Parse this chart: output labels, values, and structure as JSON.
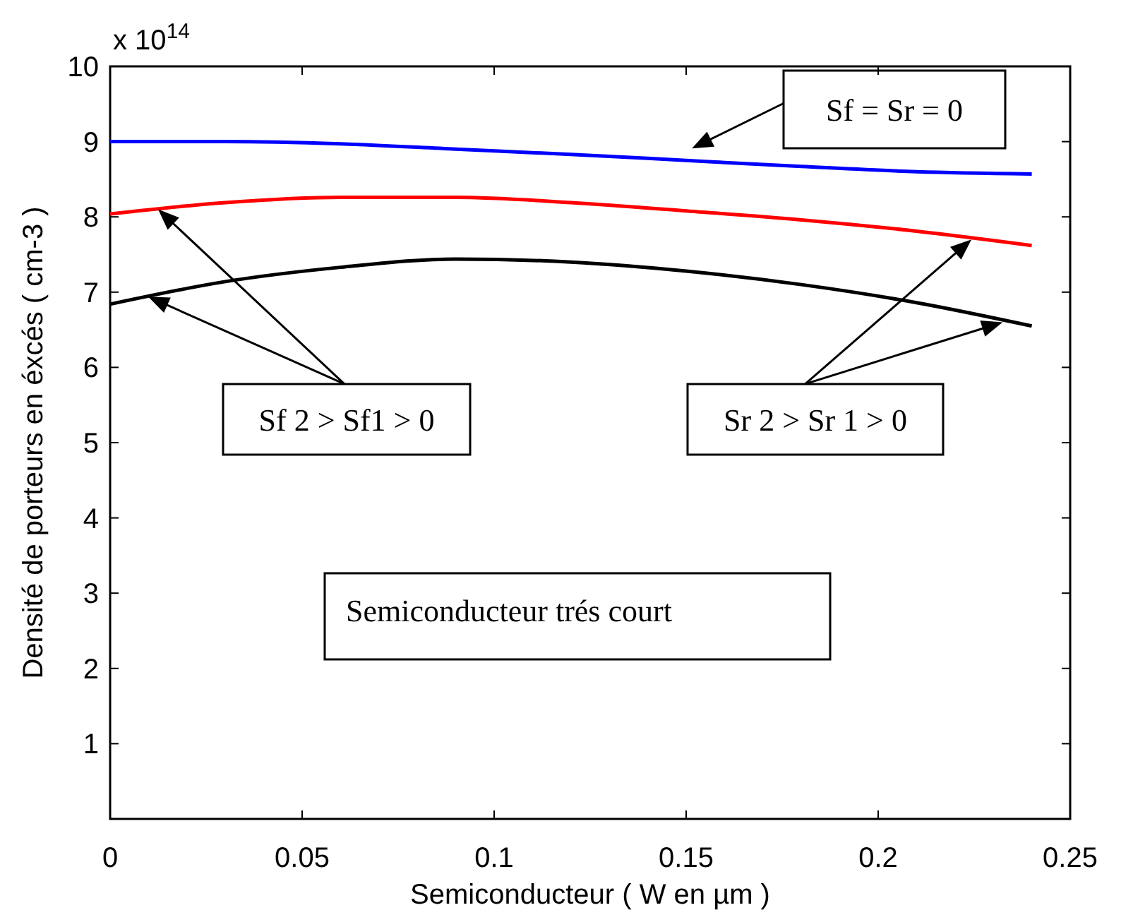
{
  "chart_data": {
    "type": "line",
    "xlabel": "Semiconducteur ( W en µm )",
    "ylabel": "Densité de porteurs en éxcés ( cm-3 )",
    "x": [
      0,
      0.03,
      0.06,
      0.09,
      0.12,
      0.15,
      0.18,
      0.21,
      0.24
    ],
    "series": [
      {
        "color": "#0000ff",
        "values": [
          9.0,
          9.0,
          8.97,
          8.9,
          8.83,
          8.75,
          8.67,
          8.6,
          8.57
        ]
      },
      {
        "color": "#ff0000",
        "values": [
          8.04,
          8.19,
          8.26,
          8.26,
          8.19,
          8.08,
          7.96,
          7.81,
          7.62
        ]
      },
      {
        "color": "#000000",
        "values": [
          6.84,
          7.14,
          7.33,
          7.44,
          7.4,
          7.28,
          7.1,
          6.86,
          6.55
        ]
      }
    ],
    "xlim": [
      0,
      0.25
    ],
    "xticks": [
      0,
      0.05,
      0.1,
      0.15,
      0.2,
      0.25
    ],
    "ylim": [
      0,
      10
    ],
    "yticks": [
      1,
      2,
      3,
      4,
      5,
      6,
      7,
      8,
      9,
      10
    ],
    "annotations": [
      "x 10$^{14}$",
      "Sf = Sr = 0",
      {
        "text": "Sf 2 > Sf1 > 0",
        "x": 0.0125,
        "y": 8.1
      },
      {
        "text": "Sr 2 > Sr 1 > 0",
        "x": 0.2243,
        "y": 7.7
      },
      "Semiconducteur trés court"
    ],
    "grid": false,
    "marker": "none",
    "line_style": "solid"
  }
}
